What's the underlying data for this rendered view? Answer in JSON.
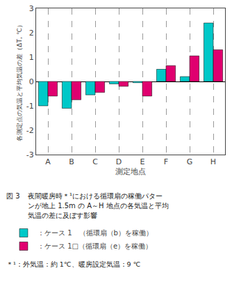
{
  "chart_data": {
    "type": "bar",
    "categories": [
      "A",
      "B",
      "C",
      "D",
      "E",
      "F",
      "G",
      "H"
    ],
    "series": [
      {
        "name": "：ケース 1　（循環扇（b）を稼働）",
        "color": "#00C8C8",
        "values": [
          -1.0,
          -1.1,
          -0.55,
          -0.1,
          -0.05,
          0.5,
          0.2,
          2.4
        ]
      },
      {
        "name": "：ケース 1□（循環扇（e）を稼働）",
        "color": "#E0006F",
        "values": [
          -0.6,
          -0.75,
          -0.45,
          -0.2,
          -0.6,
          0.65,
          1.05,
          1.3
        ]
      }
    ],
    "xlabel": "測定地点",
    "ylabel": "各測定点の気温と平均気温の差（ΔT, ℃）",
    "ylim": [
      -3,
      3
    ],
    "yticks": [
      -3,
      -2,
      -1,
      0,
      1,
      2,
      3
    ],
    "grid": true,
    "legend": "bottom",
    "annotations": [
      "図 3",
      "夜間暖房時＊¹における循環扇の稼働パター",
      "ンが地上 1.5m の A～H 地点の各気温と平均",
      "気温の差に及ぼす影響",
      "＊¹：外気温：約 1℃、暖房設定気温：9 ℃"
    ]
  }
}
